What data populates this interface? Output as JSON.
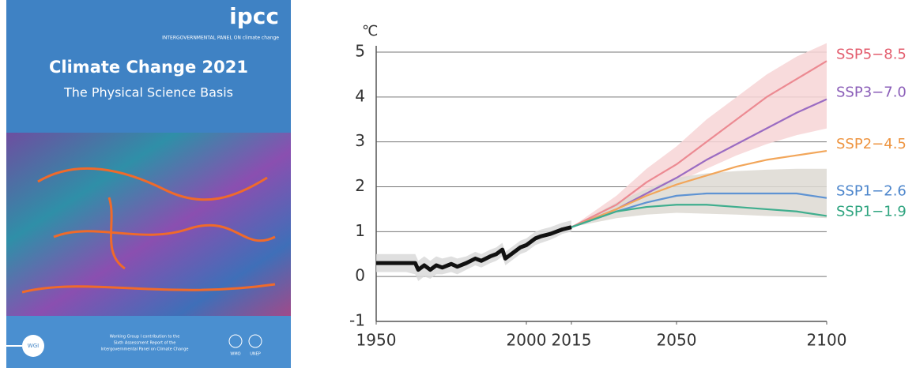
{
  "cover": {
    "logo": "ipcc",
    "org": "INTERGOVERNMENTAL PANEL ON climate change",
    "title": "Climate Change 2021",
    "subtitle": "The Physical Science Basis",
    "badge": "WGI",
    "footer": [
      "Working Group I contribution to the",
      "Sixth Assessment Report of the",
      "Intergovernmental Panel on Climate Change"
    ],
    "partners": [
      "WMO",
      "UNEP"
    ]
  },
  "chart_data": {
    "type": "line",
    "y_label": "℃",
    "xlim": [
      1950,
      2100
    ],
    "xticks": [
      1950,
      2000,
      2015,
      2050,
      2100
    ],
    "ylim": [
      -1,
      5
    ],
    "yticks": [
      -1,
      0,
      1,
      2,
      3,
      4,
      5
    ],
    "grid": true,
    "history": {
      "color": "#111111",
      "band_color": "#d9d9d9",
      "x": [
        1950,
        1955,
        1960,
        1963,
        1964,
        1966,
        1968,
        1970,
        1972,
        1975,
        1977,
        1980,
        1983,
        1985,
        1988,
        1990,
        1992,
        1993,
        1995,
        1998,
        2000,
        2003,
        2005,
        2008,
        2010,
        2012,
        2015
      ],
      "values": [
        0.3,
        0.3,
        0.3,
        0.3,
        0.15,
        0.25,
        0.15,
        0.25,
        0.2,
        0.28,
        0.22,
        0.3,
        0.4,
        0.35,
        0.45,
        0.5,
        0.6,
        0.4,
        0.5,
        0.65,
        0.7,
        0.85,
        0.9,
        0.95,
        1.0,
        1.05,
        1.1
      ],
      "lower": [
        0.1,
        0.1,
        0.1,
        0.05,
        -0.1,
        0.0,
        -0.05,
        0.05,
        0.05,
        0.1,
        0.05,
        0.15,
        0.25,
        0.2,
        0.3,
        0.35,
        0.45,
        0.25,
        0.35,
        0.5,
        0.55,
        0.7,
        0.75,
        0.82,
        0.88,
        0.95,
        1.0
      ],
      "upper": [
        0.5,
        0.5,
        0.5,
        0.5,
        0.35,
        0.45,
        0.35,
        0.45,
        0.4,
        0.45,
        0.4,
        0.45,
        0.55,
        0.5,
        0.6,
        0.65,
        0.75,
        0.55,
        0.65,
        0.8,
        0.85,
        1.0,
        1.05,
        1.1,
        1.15,
        1.2,
        1.25
      ]
    },
    "x": [
      2015,
      2030,
      2040,
      2050,
      2060,
      2070,
      2080,
      2090,
      2100
    ],
    "series": [
      {
        "name": "SSP5−8.5",
        "color": "#ec8a92",
        "label_color": "#e35d6e",
        "values": [
          1.1,
          1.6,
          2.1,
          2.5,
          3.0,
          3.5,
          4.0,
          4.4,
          4.8
        ],
        "band_color": "#f7d5d6",
        "lower": [
          1.1,
          1.45,
          1.8,
          2.1,
          2.4,
          2.7,
          2.95,
          3.15,
          3.3
        ],
        "upper": [
          1.1,
          1.8,
          2.4,
          2.9,
          3.5,
          4.0,
          4.5,
          4.9,
          5.2
        ]
      },
      {
        "name": "SSP3−7.0",
        "color": "#9b6cc2",
        "label_color": "#8a5db8",
        "values": [
          1.1,
          1.5,
          1.85,
          2.2,
          2.6,
          2.95,
          3.3,
          3.65,
          3.95
        ]
      },
      {
        "name": "SSP2−4.5",
        "color": "#f2a65a",
        "label_color": "#ee9440",
        "values": [
          1.1,
          1.5,
          1.8,
          2.05,
          2.25,
          2.45,
          2.6,
          2.7,
          2.8
        ]
      },
      {
        "name": "SSP1−2.6",
        "color": "#5e93d3",
        "label_color": "#4d86cc",
        "values": [
          1.1,
          1.45,
          1.65,
          1.8,
          1.85,
          1.85,
          1.85,
          1.85,
          1.75
        ],
        "band_color": "#ddd9d2",
        "lower": [
          1.1,
          1.3,
          1.38,
          1.42,
          1.4,
          1.38,
          1.35,
          1.33,
          1.3
        ],
        "upper": [
          1.1,
          1.65,
          1.95,
          2.2,
          2.3,
          2.35,
          2.38,
          2.4,
          2.4
        ]
      },
      {
        "name": "SSP1−1.9",
        "color": "#3fae8e",
        "label_color": "#2ea47f",
        "values": [
          1.1,
          1.45,
          1.55,
          1.6,
          1.6,
          1.55,
          1.5,
          1.45,
          1.35
        ]
      }
    ]
  }
}
